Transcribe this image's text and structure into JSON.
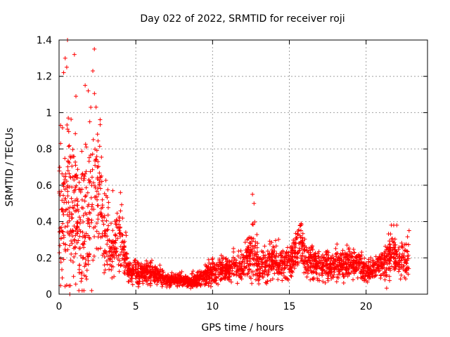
{
  "chart_data": {
    "type": "scatter",
    "title": "Day 022 of 2022, SRMTID for receiver roji",
    "xlabel": "GPS time / hours",
    "ylabel": "SRMTID / TECUs",
    "xlim": [
      0,
      24
    ],
    "ylim": [
      0,
      1.4
    ],
    "xticks": [
      0,
      5,
      10,
      15,
      20
    ],
    "xtick_labels": [
      "0",
      "5",
      "10",
      "15",
      "20"
    ],
    "yticks": [
      0,
      0.2,
      0.4,
      0.6,
      0.8,
      1.0,
      1.2,
      1.4
    ],
    "ytick_labels": [
      "0",
      "0.2",
      "0.4",
      "0.6",
      "0.8",
      "1",
      "1.2",
      "1.4"
    ],
    "grid": true,
    "marker": "+",
    "color": "#ff0000",
    "series": [
      {
        "name": "SRMTID",
        "profile_x": [
          0,
          0.5,
          1.0,
          1.5,
          2.0,
          2.5,
          3.0,
          3.5,
          4.0,
          4.3,
          4.5,
          5,
          5.5,
          6,
          6.5,
          7,
          7.5,
          8,
          8.5,
          9,
          9.5,
          10,
          10.5,
          11,
          11.5,
          12,
          12.5,
          12.7,
          13,
          13.5,
          14,
          14.5,
          15,
          15.5,
          15.7,
          16,
          16.5,
          17,
          17.5,
          18,
          18.5,
          19,
          19.5,
          20,
          20.5,
          21,
          21.3,
          21.6,
          22,
          22.5,
          22.8
        ],
        "profile_median": [
          0.4,
          0.45,
          0.4,
          0.35,
          0.45,
          0.5,
          0.3,
          0.22,
          0.28,
          0.2,
          0.12,
          0.12,
          0.12,
          0.11,
          0.1,
          0.08,
          0.08,
          0.08,
          0.07,
          0.08,
          0.1,
          0.13,
          0.14,
          0.14,
          0.15,
          0.16,
          0.22,
          0.28,
          0.15,
          0.17,
          0.2,
          0.16,
          0.17,
          0.24,
          0.3,
          0.18,
          0.17,
          0.16,
          0.15,
          0.16,
          0.17,
          0.18,
          0.16,
          0.13,
          0.14,
          0.16,
          0.18,
          0.25,
          0.2,
          0.17,
          0.2
        ],
        "profile_spread": [
          0.3,
          0.35,
          0.3,
          0.3,
          0.35,
          0.35,
          0.2,
          0.12,
          0.15,
          0.1,
          0.06,
          0.06,
          0.05,
          0.05,
          0.04,
          0.03,
          0.03,
          0.03,
          0.03,
          0.04,
          0.05,
          0.06,
          0.06,
          0.06,
          0.07,
          0.08,
          0.12,
          0.15,
          0.07,
          0.09,
          0.1,
          0.08,
          0.08,
          0.1,
          0.12,
          0.08,
          0.08,
          0.07,
          0.07,
          0.07,
          0.08,
          0.08,
          0.07,
          0.06,
          0.06,
          0.07,
          0.09,
          0.12,
          0.08,
          0.08,
          0.1
        ],
        "notable_points": [
          [
            0.1,
            0.93
          ],
          [
            0.3,
            1.22
          ],
          [
            0.4,
            1.3
          ],
          [
            0.5,
            1.25
          ],
          [
            0.55,
            1.4
          ],
          [
            0.6,
            0.97
          ],
          [
            0.5,
            0.05
          ],
          [
            0.7,
            0.0
          ],
          [
            1.0,
            1.32
          ],
          [
            1.1,
            1.09
          ],
          [
            1.7,
            1.15
          ],
          [
            1.9,
            1.12
          ],
          [
            2.2,
            1.23
          ],
          [
            2.3,
            1.35
          ],
          [
            2.0,
            0.95
          ],
          [
            2.5,
            0.7
          ],
          [
            3.5,
            0.57
          ],
          [
            4.0,
            0.56
          ],
          [
            12.6,
            0.55
          ],
          [
            12.7,
            0.5
          ],
          [
            15.7,
            0.38
          ],
          [
            21.8,
            0.38
          ],
          [
            22.0,
            0.38
          ],
          [
            22.8,
            0.35
          ]
        ]
      }
    ]
  }
}
